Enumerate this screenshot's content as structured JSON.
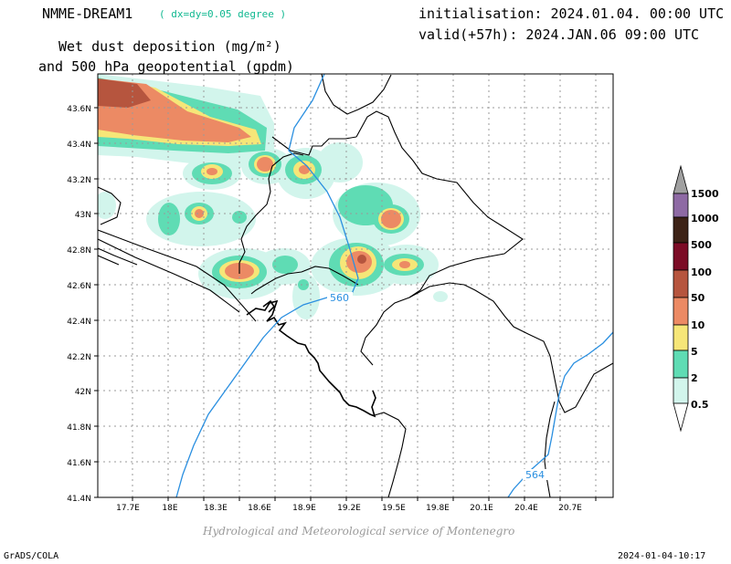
{
  "header": {
    "model": "NMME-DREAM1",
    "resolution": "( dx=dy=0.05 degree )",
    "initialisation": "initialisation: 2024.01.04. 00:00 UTC",
    "valid": "valid(+57h): 2024.JAN.06 09:00 UTC",
    "field_line1": "Wet dust deposition (mg/m²)",
    "field_line2": "and 500 hPa geopotential (gpdm)"
  },
  "map": {
    "lon_ticks": [
      "17.7E",
      "18E",
      "18.3E",
      "18.6E",
      "18.9E",
      "19.2E",
      "19.5E",
      "19.8E",
      "20.1E",
      "20.4E",
      "20.7E"
    ],
    "lat_ticks": [
      "43.6N",
      "43.4N",
      "43.2N",
      "43N",
      "42.8N",
      "42.6N",
      "42.4N",
      "42.2N",
      "42N",
      "41.8N",
      "41.6N",
      "41.4N"
    ],
    "contour_labels": [
      "560",
      "564"
    ],
    "colors": {
      "contour": "#2a8fe0",
      "grid": "#9a9a9a",
      "border": "#000000"
    }
  },
  "colorbar": {
    "levels": [
      "0.5",
      "2",
      "5",
      "10",
      "50",
      "100",
      "500",
      "1000",
      "1500"
    ],
    "colors": [
      "#d2f5ec",
      "#5fdcb4",
      "#f6e678",
      "#ec8a64",
      "#b6553e",
      "#7c0c26",
      "#3c2216",
      "#8e6aa4",
      "#a0a0a0"
    ]
  },
  "credit": "Hydrological and Meteorological service of Montenegro",
  "footer": {
    "left": "GrADS/COLA",
    "right": "2024-01-04-10:17"
  }
}
